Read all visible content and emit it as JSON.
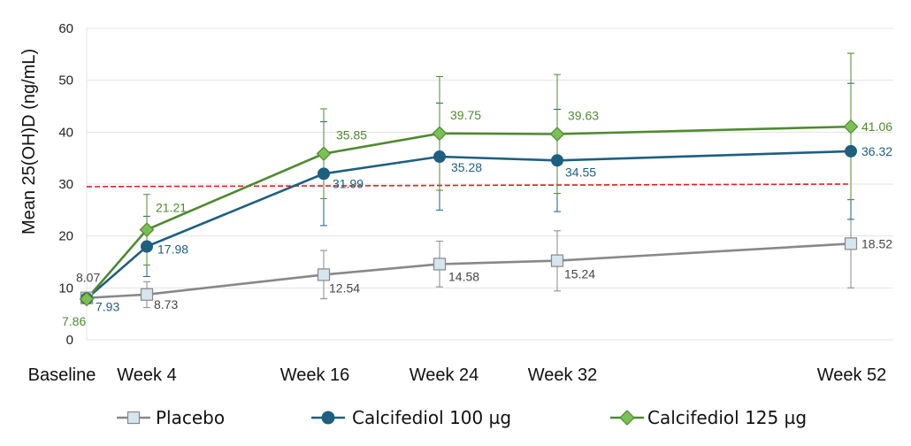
{
  "chart_data": {
    "type": "line",
    "ylabel": "Mean 25(OH)D  (ng/mL)",
    "xlabel": "",
    "ylim": [
      0,
      60
    ],
    "yticks": [
      "0",
      "10",
      "20",
      "30",
      "40",
      "50",
      "60"
    ],
    "categories": [
      "Baseline",
      "Week 4",
      "Week 16",
      "Week 24",
      "Week 32",
      "Week 52"
    ],
    "x_weeks": [
      0,
      4,
      16,
      24,
      32,
      52
    ],
    "grid": true,
    "legend_position": "bottom",
    "reference_line": {
      "y": 30,
      "style": "dashed",
      "color": "#e02020"
    },
    "series": [
      {
        "name": "Placebo",
        "marker": "square",
        "color": "#888888",
        "marker_fill": "#d6e6ee",
        "label_color": "#444444",
        "values": [
          8.07,
          8.73,
          12.54,
          14.58,
          15.24,
          18.52
        ],
        "labels": [
          "8.07",
          "8.73",
          "12.54",
          "14.58",
          "15.24",
          "18.52"
        ],
        "error": [
          [
            7.4,
            8.7
          ],
          [
            6.2,
            11.2
          ],
          [
            7.9,
            17.2
          ],
          [
            10.2,
            19.0
          ],
          [
            9.4,
            21.0
          ],
          [
            10.0,
            27.0
          ]
        ]
      },
      {
        "name": "Calcifediol 100 µg",
        "marker": "circle",
        "color": "#1e5f80",
        "marker_fill": "#1e5f80",
        "label_color": "#1e5f80",
        "values": [
          7.93,
          17.98,
          31.99,
          35.28,
          34.55,
          36.32
        ],
        "labels": [
          "7.93",
          "17.98",
          "31.99",
          "35.28",
          "34.55",
          "36.32"
        ],
        "error": [
          [
            7.0,
            8.9
          ],
          [
            12.2,
            23.8
          ],
          [
            22.0,
            42.0
          ],
          [
            25.0,
            45.6
          ],
          [
            24.7,
            44.4
          ],
          [
            23.2,
            49.4
          ]
        ]
      },
      {
        "name": "Calcifediol 125 µg",
        "marker": "diamond",
        "color": "#4f8a30",
        "marker_fill": "#7bc054",
        "label_color": "#4f8a30",
        "values": [
          7.86,
          21.21,
          35.85,
          39.75,
          39.63,
          41.06
        ],
        "labels": [
          "7.86",
          "21.21",
          "35.85",
          "39.75",
          "39.63",
          "41.06"
        ],
        "error": [
          [
            7.2,
            8.5
          ],
          [
            14.4,
            28.0
          ],
          [
            27.2,
            44.5
          ],
          [
            28.8,
            50.7
          ],
          [
            28.2,
            51.1
          ],
          [
            27.0,
            55.2
          ]
        ]
      }
    ]
  }
}
